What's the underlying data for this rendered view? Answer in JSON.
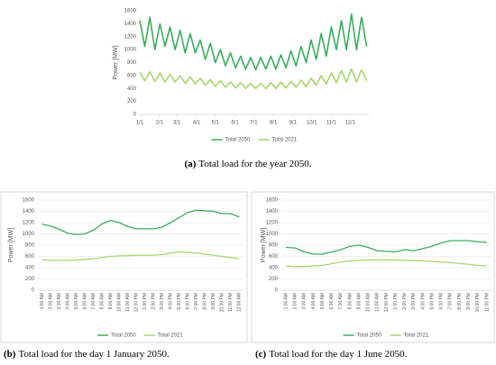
{
  "chart_data": [
    {
      "type": "line",
      "caption_label": "(a)",
      "caption": "Total load for the year 2050.",
      "y_label": "Power [MW]",
      "x": [
        1,
        9,
        17,
        25,
        33,
        41,
        49,
        57,
        65,
        73,
        81,
        89,
        97,
        105,
        113,
        121,
        129,
        137,
        145,
        153,
        161,
        169,
        177,
        185,
        193,
        201,
        209,
        217,
        225,
        233,
        241,
        249,
        257,
        265,
        273,
        281,
        289,
        297,
        305,
        313,
        321,
        329,
        337,
        345,
        353,
        361
      ],
      "xlim": [
        1,
        366
      ],
      "xticks": [
        {
          "value": 1,
          "label": "1/1"
        },
        {
          "value": 32,
          "label": "2/1"
        },
        {
          "value": 60,
          "label": "3/1"
        },
        {
          "value": 91,
          "label": "4/1"
        },
        {
          "value": 121,
          "label": "5/1"
        },
        {
          "value": 152,
          "label": "6/1"
        },
        {
          "value": 182,
          "label": "7/1"
        },
        {
          "value": 213,
          "label": "8/1"
        },
        {
          "value": 244,
          "label": "9/1"
        },
        {
          "value": 274,
          "label": "10/1"
        },
        {
          "value": 305,
          "label": "11/1"
        },
        {
          "value": 335,
          "label": "12/1"
        }
      ],
      "ylim": [
        0,
        1600
      ],
      "yticks": [
        0,
        200,
        400,
        600,
        800,
        1000,
        1200,
        1400,
        1600
      ],
      "grid": false,
      "series": [
        {
          "name": "Total 2050",
          "color": "#3aad5e",
          "values": [
            1450,
            1050,
            1500,
            1000,
            1400,
            1050,
            1350,
            1000,
            1300,
            950,
            1250,
            950,
            1150,
            850,
            1100,
            800,
            1000,
            750,
            950,
            720,
            900,
            700,
            880,
            690,
            880,
            700,
            900,
            700,
            920,
            720,
            980,
            750,
            1050,
            800,
            1150,
            850,
            1250,
            900,
            1350,
            1000,
            1450,
            1000,
            1550,
            1000,
            1500,
            1050
          ]
        },
        {
          "name": "Total 2021",
          "color": "#a9d46f",
          "values": [
            650,
            520,
            660,
            510,
            640,
            500,
            620,
            500,
            600,
            480,
            580,
            470,
            560,
            450,
            540,
            430,
            520,
            420,
            500,
            410,
            490,
            400,
            480,
            400,
            480,
            400,
            490,
            400,
            500,
            410,
            510,
            420,
            530,
            430,
            560,
            450,
            600,
            470,
            640,
            490,
            680,
            500,
            700,
            500,
            690,
            520
          ]
        }
      ]
    },
    {
      "type": "line",
      "caption_label": "(b)",
      "caption": "Total load for the day 1 January 2050.",
      "y_label": "Power [MW]",
      "categories": [
        "1:00 AM",
        "2:00 AM",
        "3:00 AM",
        "4:00 AM",
        "5:00 AM",
        "6:00 AM",
        "7:00 AM",
        "8:00 AM",
        "9:00 AM",
        "10:00 AM",
        "11:00 AM",
        "12:00 PM",
        "1:00 PM",
        "2:00 PM",
        "3:00 PM",
        "4:00 PM",
        "5:00 PM",
        "6:00 PM",
        "7:00 PM",
        "8:00 PM",
        "9:00 PM",
        "10:00 PM",
        "11:00 PM",
        "12:00 AM"
      ],
      "ylim": [
        0,
        1600
      ],
      "yticks": [
        0,
        200,
        400,
        600,
        800,
        1000,
        1200,
        1400,
        1600
      ],
      "grid": true,
      "series": [
        {
          "name": "Total 2050",
          "color": "#3aad5e",
          "values": [
            1170,
            1140,
            1080,
            1010,
            990,
            1000,
            1070,
            1180,
            1240,
            1200,
            1130,
            1090,
            1090,
            1090,
            1120,
            1200,
            1290,
            1380,
            1420,
            1410,
            1400,
            1360,
            1360,
            1300
          ]
        },
        {
          "name": "Total 2021",
          "color": "#a9d46f",
          "values": [
            540,
            530,
            530,
            530,
            535,
            545,
            560,
            580,
            600,
            610,
            615,
            620,
            620,
            620,
            630,
            660,
            680,
            670,
            660,
            640,
            620,
            600,
            580,
            560
          ]
        }
      ]
    },
    {
      "type": "line",
      "caption_label": "(c)",
      "caption": "Total load for the day 1 June 2050.",
      "y_label": "Power [MW]",
      "categories": [
        "1:00 AM",
        "2:00 AM",
        "3:00 AM",
        "4:00 AM",
        "5:00 AM",
        "6:00 AM",
        "7:00 AM",
        "8:00 AM",
        "9:00 AM",
        "10:00 AM",
        "11:00 AM",
        "12:00 PM",
        "1:00 PM",
        "2:00 PM",
        "3:00 PM",
        "4:00 PM",
        "5:00 PM",
        "6:00 PM",
        "7:00 PM",
        "8:00 PM",
        "9:00 PM",
        "10:00 PM",
        "11:00 PM"
      ],
      "ylim": [
        0,
        1600
      ],
      "yticks": [
        0,
        200,
        400,
        600,
        800,
        1000,
        1200,
        1400,
        1600
      ],
      "grid": true,
      "series": [
        {
          "name": "Total 2050",
          "color": "#3aad5e",
          "values": [
            760,
            750,
            680,
            640,
            640,
            680,
            720,
            780,
            800,
            760,
            700,
            690,
            680,
            720,
            700,
            740,
            780,
            840,
            880,
            880,
            880,
            860,
            850
          ]
        },
        {
          "name": "Total 2021",
          "color": "#a9d46f",
          "values": [
            430,
            420,
            420,
            430,
            440,
            470,
            500,
            520,
            530,
            535,
            540,
            540,
            535,
            530,
            525,
            520,
            510,
            500,
            490,
            475,
            460,
            440,
            430
          ]
        }
      ]
    }
  ]
}
